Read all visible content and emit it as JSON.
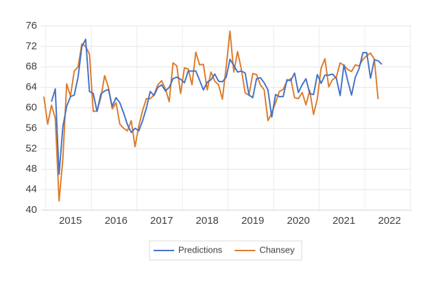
{
  "chart_data": {
    "type": "line",
    "categories": [
      null,
      null,
      null,
      null,
      null,
      null,
      null,
      "2015",
      null,
      null,
      null,
      null,
      null,
      null,
      null,
      null,
      null,
      null,
      null,
      "2016",
      null,
      null,
      null,
      null,
      null,
      null,
      null,
      null,
      null,
      null,
      null,
      "2017",
      null,
      null,
      null,
      null,
      null,
      null,
      null,
      null,
      null,
      null,
      null,
      "2018",
      null,
      null,
      null,
      null,
      null,
      null,
      null,
      null,
      null,
      null,
      null,
      "2019",
      null,
      null,
      null,
      null,
      null,
      null,
      null,
      null,
      null,
      null,
      null,
      "2020",
      null,
      null,
      null,
      null,
      null,
      null,
      null,
      null,
      null,
      null,
      null,
      "2021",
      null,
      null,
      null,
      null,
      null,
      null,
      null,
      null,
      null,
      null,
      null,
      "2022"
    ],
    "series": [
      {
        "name": "Predictions",
        "color": "#4472c4",
        "values": [
          null,
          null,
          61.2,
          63.7,
          47,
          56.3,
          60.3,
          62.2,
          62.5,
          66,
          72,
          73.4,
          63.2,
          62.8,
          59.3,
          62.7,
          63.3,
          63.6,
          60.3,
          62,
          61,
          59,
          56.7,
          55.2,
          56,
          55.5,
          57.5,
          60,
          63.2,
          62.4,
          64,
          64.5,
          63.3,
          64,
          65.7,
          66,
          65.6,
          64.9,
          67.2,
          67.2,
          67.2,
          65.4,
          63.5,
          65,
          65.5,
          66.6,
          65.2,
          65.1,
          66,
          69.5,
          68.3,
          67,
          67.2,
          66.8,
          62.5,
          62,
          65.7,
          65.9,
          64.9,
          63.5,
          58.2,
          62.6,
          62.2,
          62.2,
          65.5,
          65.3,
          66.8,
          63,
          64.5,
          65.7,
          62.8,
          62.6,
          66.5,
          64.8,
          66.4,
          66.4,
          66.6,
          65.8,
          62.4,
          68.4,
          65.3,
          62.5,
          66,
          67.7,
          70.8,
          70.8,
          65.8,
          69.4,
          69.2,
          68.5,
          null,
          null
        ]
      },
      {
        "name": "Chansey",
        "color": "#dd7b2a",
        "values": [
          62.2,
          56.8,
          60.5,
          58,
          41.8,
          50,
          64.7,
          62.3,
          67.2,
          68,
          72.5,
          72,
          70.5,
          59.3,
          59.4,
          62,
          66.3,
          64,
          59.8,
          61,
          56.8,
          56,
          55.5,
          57.5,
          52.4,
          56.5,
          59.5,
          61.8,
          61.8,
          62.5,
          64.5,
          65.3,
          63.7,
          61.2,
          68.8,
          68.2,
          62.8,
          67.8,
          67.6,
          64.5,
          70.9,
          68.4,
          68.5,
          63.5,
          67,
          65.2,
          64.5,
          61.7,
          68,
          75,
          67,
          71,
          67.5,
          62.9,
          62.5,
          66.7,
          66.5,
          64.5,
          63.5,
          57.5,
          59,
          61,
          63.2,
          63.6,
          65.2,
          65.7,
          62,
          61.8,
          63,
          60.6,
          63.4,
          58.7,
          61.8,
          67.8,
          69.6,
          64.1,
          65.5,
          66,
          68.8,
          68.3,
          67.5,
          67.1,
          68.4,
          68.2,
          69.5,
          70.2,
          70.7,
          69.5,
          61.7,
          null,
          null,
          null
        ]
      }
    ],
    "ylim": [
      40,
      76
    ],
    "yticks": [
      40,
      44,
      48,
      52,
      56,
      60,
      64,
      68,
      72,
      76
    ],
    "grid": true,
    "legend": "bottom"
  }
}
